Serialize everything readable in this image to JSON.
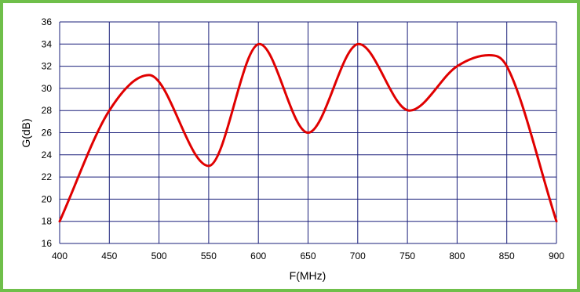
{
  "chart_data": {
    "type": "line",
    "title": "",
    "xlabel": "F(MHz)",
    "ylabel": "G(dB)",
    "xlim": [
      400,
      900
    ],
    "ylim": [
      16,
      36
    ],
    "x_ticks": [
      400,
      450,
      500,
      550,
      600,
      650,
      700,
      750,
      800,
      850,
      900
    ],
    "y_ticks": [
      16,
      18,
      20,
      22,
      24,
      26,
      28,
      30,
      32,
      34,
      36
    ],
    "grid": true,
    "legend": "none",
    "series": [
      {
        "color": "#e00000",
        "x": [
          400,
          450,
          490,
          550,
          601,
          650,
          701,
          752,
          800,
          832,
          850,
          900
        ],
        "y": [
          18,
          28,
          31.2,
          23,
          34,
          26,
          34,
          28,
          32,
          33,
          32,
          18
        ]
      }
    ]
  },
  "colors": {
    "border": "#6fbf4a",
    "grid": "#1a1f7a",
    "line": "#e00000"
  }
}
